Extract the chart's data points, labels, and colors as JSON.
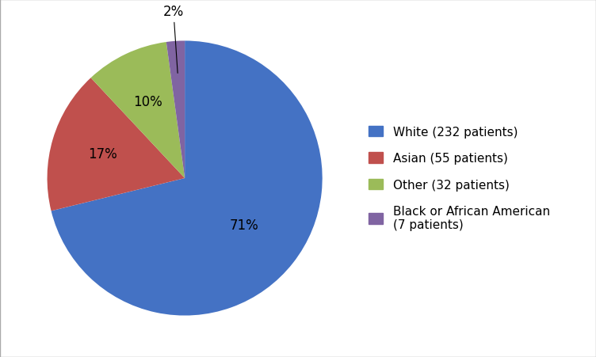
{
  "labels": [
    "White (232 patients)",
    "Asian (55 patients)",
    "Other (32 patients)",
    "Black or African American\n(7 patients)"
  ],
  "values": [
    232,
    55,
    32,
    7
  ],
  "pct_labels": [
    "71%",
    "17%",
    "10%",
    "2%"
  ],
  "colors": [
    "#4472C4",
    "#C0504D",
    "#9BBB59",
    "#8064A2"
  ],
  "background_color": "#ffffff",
  "startangle": 90,
  "legend_fontsize": 11,
  "pct_fontsize": 12
}
